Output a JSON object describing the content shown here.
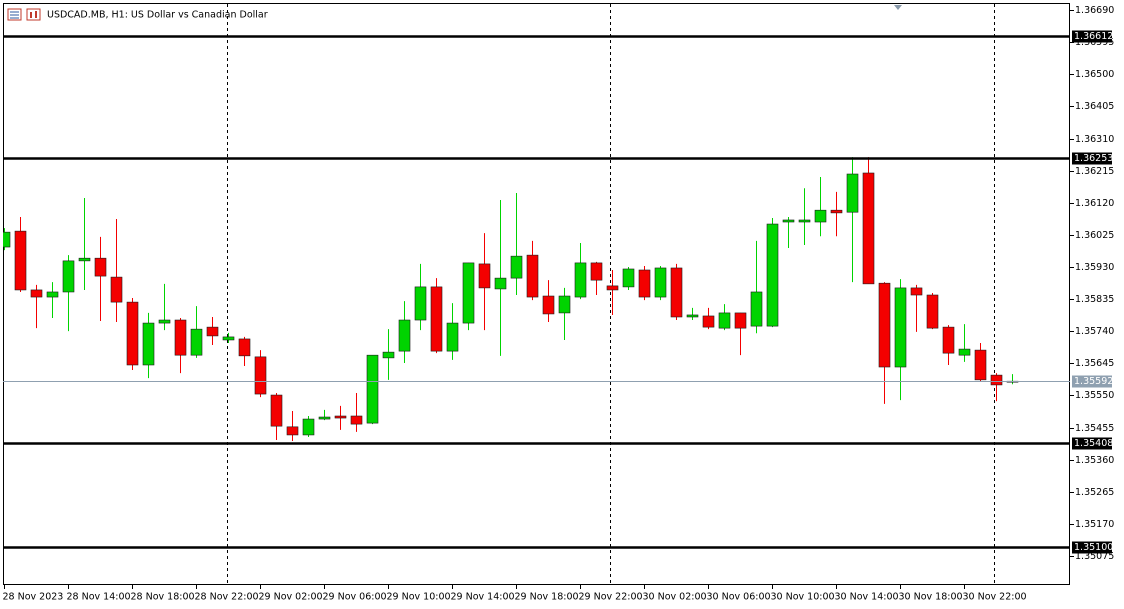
{
  "chart_data": {
    "type": "candlestick",
    "title": "USDCAD.MB, H1:  US Dollar vs Canadian Dollar",
    "categories": [
      "28 Nov 2023",
      null,
      null,
      null,
      "28 Nov 14:00",
      null,
      null,
      null,
      "28 Nov 18:00",
      null,
      null,
      null,
      "28 Nov 22:00",
      null,
      null,
      null,
      "29 Nov 02:00",
      null,
      null,
      null,
      "29 Nov 06:00",
      null,
      null,
      null,
      "29 Nov 10:00",
      null,
      null,
      null,
      "29 Nov 14:00",
      null,
      null,
      null,
      "29 Nov 18:00",
      null,
      null,
      null,
      "29 Nov 22:00",
      null,
      null,
      null,
      "30 Nov 02:00",
      null,
      null,
      null,
      "30 Nov 06:00",
      null,
      null,
      null,
      "30 Nov 10:00",
      null,
      null,
      null,
      "30 Nov 14:00",
      null,
      null,
      null,
      "30 Nov 18:00",
      null,
      null,
      null,
      "30 Nov 22:00",
      null,
      null,
      null
    ],
    "open": [
      1.35989,
      1.36036,
      1.35862,
      1.35841,
      1.35856,
      1.35948,
      1.35956,
      1.359,
      1.35826,
      1.3564,
      1.35764,
      1.35773,
      1.35669,
      1.35752,
      1.35714,
      1.35717,
      1.35664,
      1.35551,
      1.35457,
      1.35433,
      1.3548,
      1.35489,
      1.35489,
      1.35468,
      1.35661,
      1.35681,
      1.35773,
      1.35871,
      1.35681,
      1.35764,
      1.35939,
      1.35865,
      1.35897,
      1.35965,
      1.35844,
      1.35794,
      1.35841,
      1.35942,
      1.35874,
      1.35871,
      1.35921,
      1.35841,
      1.35927,
      1.35782,
      1.35785,
      1.35749,
      1.35794,
      1.35755,
      1.35755,
      1.36063,
      1.36063,
      1.36063,
      1.36098,
      1.36092,
      1.36208,
      1.35882,
      1.35634,
      1.35868,
      1.35847,
      1.35752,
      1.35669,
      1.35684,
      1.3561,
      1.35589
    ],
    "high": [
      1.36045,
      1.36078,
      1.35877,
      1.35885,
      1.35965,
      1.36134,
      1.36019,
      1.36072,
      1.35838,
      1.35794,
      1.3588,
      1.35779,
      1.35814,
      1.35782,
      1.35735,
      1.35723,
      1.35684,
      1.35557,
      1.35504,
      1.35489,
      1.35507,
      1.35519,
      1.35557,
      1.35669,
      1.35746,
      1.35829,
      1.35939,
      1.35897,
      1.35823,
      1.35942,
      1.3603,
      1.36128,
      1.36149,
      1.36007,
      1.35891,
      1.35868,
      1.36001,
      1.35945,
      1.35921,
      1.3593,
      1.35933,
      1.35933,
      1.35939,
      1.35809,
      1.35809,
      1.3582,
      1.35794,
      1.36007,
      1.36075,
      1.36078,
      1.36163,
      1.36196,
      1.36152,
      1.36255,
      1.36255,
      1.35885,
      1.35894,
      1.35877,
      1.35853,
      1.35758,
      1.35761,
      1.35705,
      1.35616,
      1.35613
    ],
    "low": [
      1.3598,
      1.35856,
      1.35749,
      1.35779,
      1.3574,
      1.35862,
      1.3577,
      1.35767,
      1.35625,
      1.35601,
      1.35743,
      1.35616,
      1.35661,
      1.35699,
      1.35705,
      1.35637,
      1.35545,
      1.35418,
      1.35415,
      1.35427,
      1.35477,
      1.35448,
      1.35442,
      1.35465,
      1.35596,
      1.35646,
      1.35743,
      1.35675,
      1.35655,
      1.35743,
      1.35743,
      1.35667,
      1.35847,
      1.35832,
      1.35767,
      1.35714,
      1.35835,
      1.35847,
      1.35788,
      1.35862,
      1.35832,
      1.35832,
      1.35773,
      1.35773,
      1.35746,
      1.35743,
      1.35669,
      1.35734,
      1.35752,
      1.35986,
      1.35995,
      1.36021,
      1.36021,
      1.35885,
      1.3588,
      1.35525,
      1.35536,
      1.35738,
      1.35746,
      1.3564,
      1.35649,
      1.3559,
      1.35533,
      1.35583
    ],
    "close": [
      1.36033,
      1.35862,
      1.35841,
      1.35856,
      1.35948,
      1.35956,
      1.35903,
      1.35826,
      1.3564,
      1.35764,
      1.35773,
      1.35669,
      1.35746,
      1.35726,
      1.35723,
      1.35667,
      1.35554,
      1.35459,
      1.35433,
      1.3548,
      1.35486,
      1.35483,
      1.35465,
      1.35669,
      1.35678,
      1.35773,
      1.35871,
      1.35681,
      1.35764,
      1.35942,
      1.35868,
      1.35897,
      1.35962,
      1.35841,
      1.35791,
      1.35844,
      1.35942,
      1.35891,
      1.35862,
      1.35924,
      1.35841,
      1.35927,
      1.35782,
      1.35788,
      1.35752,
      1.35794,
      1.35749,
      1.35856,
      1.36057,
      1.36069,
      1.36069,
      1.36098,
      1.3609,
      1.36205,
      1.3588,
      1.35634,
      1.35868,
      1.35847,
      1.35749,
      1.35675,
      1.35687,
      1.35596,
      1.35581,
      1.35592
    ],
    "up_color": "#00d400",
    "down_color": "#f40000",
    "ylim": [
      1.34989,
      1.36711
    ],
    "yticks": [
      {
        "value": 1.3669,
        "label": "1.36690"
      },
      1.36595,
      {
        "value": 1.365,
        "label": "1.36500"
      },
      1.36405,
      {
        "value": 1.3631,
        "label": "1.36310"
      },
      1.36215,
      {
        "value": 1.3612,
        "label": "1.36120"
      },
      1.36025,
      {
        "value": 1.3593,
        "label": "1.35930"
      },
      1.35835,
      {
        "value": 1.3574,
        "label": "1.35740"
      },
      1.35645,
      {
        "value": 1.3555,
        "label": "1.35550"
      },
      1.35455,
      {
        "value": 1.3536,
        "label": "1.35360"
      },
      1.35265,
      {
        "value": 1.3517,
        "label": "1.35170"
      },
      1.35075
    ],
    "levels": [
      1.36612,
      1.36253,
      1.35408,
      {
        "value": 1.351,
        "label": "1.35100"
      }
    ],
    "grid": false
  }
}
